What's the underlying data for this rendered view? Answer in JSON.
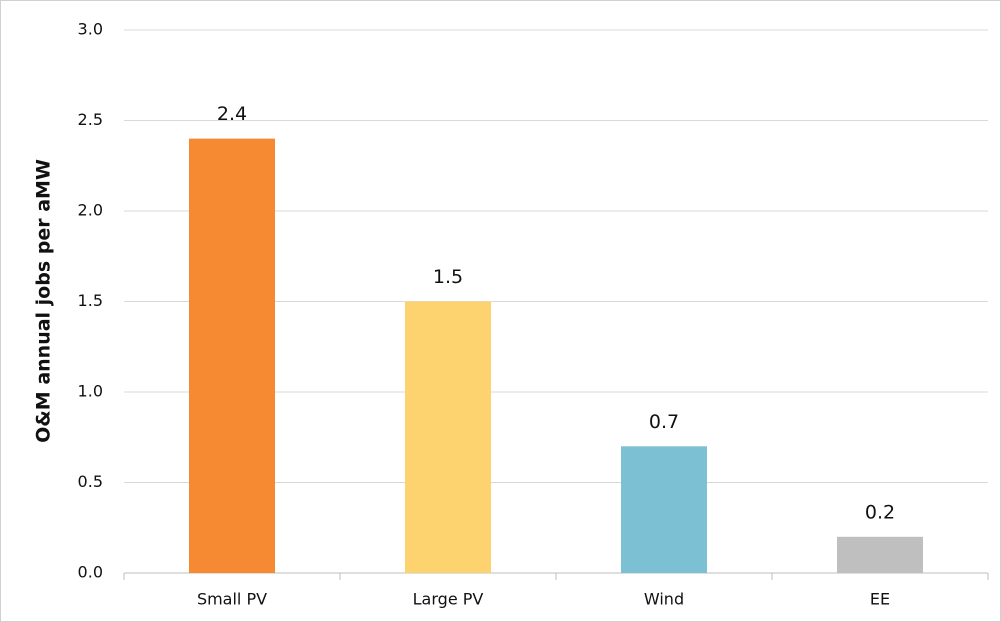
{
  "chart_data": {
    "type": "bar",
    "y_label": "O&M annual jobs per aMW",
    "categories": [
      "Small PV",
      "Large PV",
      "Wind",
      "EE"
    ],
    "values": [
      2.4,
      1.5,
      0.7,
      0.2
    ],
    "colors": [
      "#f58a32",
      "#fdd36f",
      "#7cc1d3",
      "#bfbfbf"
    ],
    "ylim": [
      0,
      3
    ],
    "yticks": [
      {
        "value": 0,
        "label": "0.0"
      },
      0.5,
      {
        "value": 1,
        "label": "1.0"
      },
      1.5,
      {
        "value": 2,
        "label": "2.0"
      },
      2.5,
      {
        "value": 3,
        "label": "3.0"
      }
    ],
    "grid": true
  }
}
